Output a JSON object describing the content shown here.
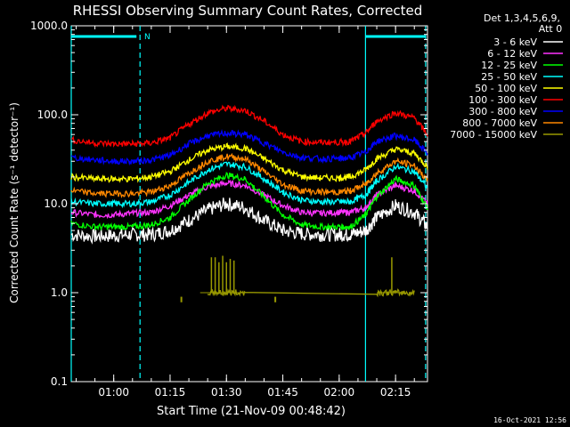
{
  "chart_data": {
    "type": "line",
    "title": "RHESSI Observing Summary Count Rates, Corrected",
    "xlabel": "Start Time (21-Nov-09 00:48:42)",
    "ylabel": "Corrected Count Rate (s⁻¹ detector⁻¹)",
    "y_scale": "log",
    "ylim": [
      0.1,
      1000.0
    ],
    "xlim": [
      "00:48:42",
      "02:23:30"
    ],
    "y_ticks": [
      "0.1",
      "1.0",
      "10.0",
      "100.0",
      "1000.0"
    ],
    "x_ticks": [
      "01:00",
      "01:15",
      "01:30",
      "01:45",
      "02:00",
      "02:15"
    ],
    "legend_header": [
      "Det 1,3,4,5,6,9,",
      "Att 0"
    ],
    "legend_position": "right",
    "timestamp": "16-Oct-2021 12:56",
    "annotation": "N",
    "x_time": [
      "00:48:42",
      "00:55",
      "01:00",
      "01:05",
      "01:10",
      "01:15",
      "01:20",
      "01:25",
      "01:30",
      "01:35",
      "01:40",
      "01:45",
      "01:50",
      "01:55",
      "02:00",
      "02:03",
      "02:07",
      "02:10",
      "02:15",
      "02:20",
      "02:23:30"
    ],
    "series": [
      {
        "name": "3 - 6 keV",
        "color": "#ffffff",
        "values": [
          4.5,
          4.3,
          4.4,
          4.5,
          4.5,
          5.0,
          6.5,
          8.5,
          10.0,
          9.0,
          6.5,
          5.0,
          4.6,
          4.5,
          4.5,
          4.5,
          5.0,
          7.0,
          9.5,
          8.0,
          5.5
        ]
      },
      {
        "name": "6 - 12 keV",
        "color": "#ff33ff",
        "values": [
          8.0,
          7.5,
          7.5,
          7.8,
          8.0,
          9.5,
          12.5,
          15.5,
          17.0,
          16.0,
          12.5,
          9.5,
          8.0,
          7.8,
          8.0,
          8.0,
          9.0,
          12.5,
          16.0,
          14.0,
          10.0
        ]
      },
      {
        "name": "12 - 25 keV",
        "color": "#00ff00",
        "values": [
          6.0,
          5.5,
          5.5,
          5.5,
          5.8,
          7.0,
          11.0,
          17.0,
          21.0,
          19.0,
          12.0,
          7.5,
          5.8,
          5.5,
          5.5,
          5.5,
          7.5,
          12.0,
          19.0,
          16.0,
          9.0
        ]
      },
      {
        "name": "25 - 50 keV",
        "color": "#00ffff",
        "values": [
          10.5,
          10.0,
          10.0,
          10.0,
          10.5,
          12.5,
          17.5,
          24.0,
          28.0,
          26.0,
          19.0,
          13.5,
          11.0,
          10.5,
          10.5,
          10.5,
          12.5,
          18.0,
          26.0,
          23.0,
          15.0
        ]
      },
      {
        "name": "50 - 100 keV",
        "color": "#ffff00",
        "values": [
          20.0,
          19.0,
          19.0,
          19.0,
          20.0,
          23.0,
          31.0,
          40.0,
          44.0,
          42.0,
          32.0,
          24.0,
          20.0,
          19.5,
          19.5,
          20.0,
          24.0,
          32.0,
          41.0,
          37.0,
          26.0
        ]
      },
      {
        "name": "100 - 300 keV",
        "color": "#ff0000",
        "values": [
          52.0,
          48.0,
          47.0,
          47.0,
          48.0,
          55.0,
          78.0,
          105.0,
          118.0,
          112.0,
          85.0,
          60.0,
          50.0,
          49.0,
          49.0,
          50.0,
          62.0,
          85.0,
          105.0,
          92.0,
          60.0
        ]
      },
      {
        "name": "300 - 800 keV",
        "color": "#0000ff",
        "values": [
          33.0,
          31.0,
          30.0,
          30.0,
          31.0,
          35.0,
          47.0,
          58.0,
          62.0,
          60.0,
          48.0,
          38.0,
          33.0,
          32.0,
          32.0,
          33.0,
          38.0,
          50.0,
          58.0,
          52.0,
          37.0
        ]
      },
      {
        "name": "800 - 7000 keV",
        "color": "#ff8800",
        "values": [
          14.0,
          13.0,
          13.0,
          13.0,
          13.5,
          16.0,
          22.0,
          30.0,
          34.0,
          32.0,
          23.0,
          16.5,
          14.0,
          13.5,
          13.5,
          14.0,
          16.5,
          22.0,
          30.0,
          27.0,
          18.0
        ]
      },
      {
        "name": "7000 - 15000 keV",
        "color": "#999900",
        "values": [
          null,
          null,
          null,
          null,
          null,
          null,
          null,
          1.0,
          1.0,
          1.0,
          null,
          null,
          null,
          null,
          null,
          null,
          null,
          1.0,
          1.0,
          1.0,
          null
        ]
      }
    ],
    "spikes_7000": [
      {
        "t": "01:26",
        "v": 2.5
      },
      {
        "t": "01:27",
        "v": 2.5
      },
      {
        "t": "01:28",
        "v": 2.2
      },
      {
        "t": "01:29",
        "v": 2.6
      },
      {
        "t": "01:30",
        "v": 2.2
      },
      {
        "t": "01:31",
        "v": 2.4
      },
      {
        "t": "01:32",
        "v": 2.3
      },
      {
        "t": "02:14",
        "v": 2.5
      }
    ],
    "low_marks_7000": [
      {
        "t": "01:18",
        "v": 0.78
      },
      {
        "t": "01:43",
        "v": 0.78
      }
    ],
    "markers": {
      "solid_cyan": [
        "00:48:42",
        "02:07"
      ],
      "dashed_cyan": [
        "01:07",
        "02:23:00"
      ],
      "flag_color": "#00ffff"
    }
  }
}
